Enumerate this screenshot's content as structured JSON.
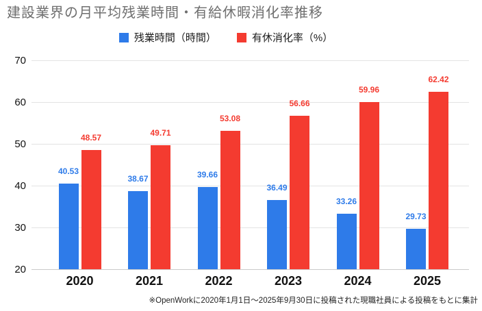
{
  "footnote": "※OpenWorkに2020年1月1日〜2025年9月30日に投稿された現職社員による投稿をもとに集計",
  "colors": {
    "overtime_blue": "#2E7BE9",
    "leave_red": "#F43B30",
    "gridline": "#e3e3e3",
    "baseline": "#c9c9c9",
    "title_gray": "#6e6e6e"
  },
  "chart_data": {
    "type": "bar",
    "title": "建設業界の月平均残業時間・有給休暇消化率推移",
    "categories": [
      "2020",
      "2021",
      "2022",
      "2023",
      "2024",
      "2025"
    ],
    "series": [
      {
        "id": "overtime-hours",
        "name": "残業時間（時間）",
        "color": "#2E7BE9",
        "values": [
          40.53,
          38.67,
          39.66,
          36.49,
          33.26,
          29.73
        ]
      },
      {
        "id": "paid-leave-rate",
        "name": "有休消化率（%）",
        "color": "#F43B30",
        "values": [
          48.57,
          49.71,
          53.08,
          56.66,
          59.96,
          62.42
        ]
      }
    ],
    "xlabel": "",
    "ylabel": "",
    "ylim": [
      20,
      70
    ],
    "yticks": [
      20,
      30,
      40,
      50,
      60,
      70
    ],
    "grid": true,
    "legend_position": "top",
    "data_labels": true
  }
}
